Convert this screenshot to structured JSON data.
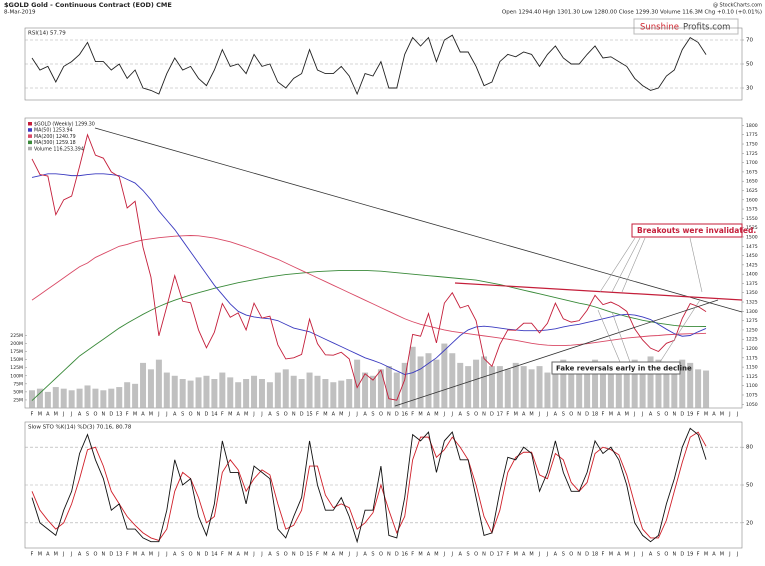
{
  "header": {
    "title": "$GOLD Gold - Continuous Contract (EOD) CME",
    "date": "8-Mar-2019",
    "quote": "Open 1294.40 High 1301.30 Low 1280.00 Close 1299.30 Volume 116.3M Chg +0.10 (+0.01%)",
    "source": "@ StockCharts.com",
    "logo": [
      "Sunshine",
      "Profits.com"
    ]
  },
  "chart_data": [
    {
      "type": "line",
      "title": "RSI(14) 57.79",
      "ylim": [
        20,
        80
      ],
      "yticks": [
        30,
        50,
        70
      ],
      "grid": true,
      "series": [
        {
          "name": "RSI(14)",
          "color": "#222222",
          "values": [
            55,
            45,
            48,
            35,
            48,
            52,
            58,
            68,
            52,
            52,
            45,
            50,
            38,
            45,
            30,
            28,
            25,
            42,
            55,
            45,
            48,
            38,
            32,
            45,
            62,
            48,
            50,
            42,
            58,
            48,
            50,
            35,
            30,
            38,
            42,
            62,
            45,
            42,
            42,
            48,
            40,
            25,
            42,
            40,
            52,
            30,
            30,
            58,
            72,
            65,
            72,
            52,
            70,
            74,
            60,
            60,
            48,
            32,
            35,
            52,
            58,
            56,
            60,
            58,
            48,
            58,
            65,
            55,
            50,
            50,
            58,
            65,
            55,
            56,
            52,
            48,
            38,
            32,
            28,
            30,
            40,
            45,
            62,
            72,
            68,
            57.79,
            null,
            null,
            null,
            null
          ]
        }
      ]
    },
    {
      "type": "line",
      "categories": [
        "F",
        "M",
        "A",
        "M",
        "J",
        "J",
        "A",
        "S",
        "O",
        "N",
        "D",
        "13",
        "F",
        "M",
        "A",
        "M",
        "J",
        "J",
        "A",
        "S",
        "O",
        "N",
        "D",
        "14",
        "F",
        "M",
        "A",
        "M",
        "J",
        "J",
        "A",
        "S",
        "O",
        "N",
        "D",
        "15",
        "F",
        "M",
        "A",
        "M",
        "J",
        "J",
        "A",
        "S",
        "O",
        "N",
        "D",
        "16",
        "F",
        "M",
        "A",
        "M",
        "J",
        "J",
        "A",
        "S",
        "O",
        "N",
        "D",
        "17",
        "F",
        "M",
        "A",
        "M",
        "J",
        "J",
        "A",
        "S",
        "O",
        "N",
        "D",
        "18",
        "F",
        "M",
        "A",
        "M",
        "J",
        "J",
        "A",
        "S",
        "O",
        "N",
        "D",
        "19",
        "F",
        "M",
        "A",
        "M",
        "J",
        "J"
      ],
      "ylim": [
        1040,
        1820
      ],
      "yticks": [
        1050,
        1075,
        1100,
        1125,
        1150,
        1175,
        1200,
        1225,
        1250,
        1275,
        1300,
        1325,
        1350,
        1375,
        1400,
        1425,
        1450,
        1475,
        1500,
        1525,
        1550,
        1575,
        1600,
        1625,
        1650,
        1675,
        1700,
        1725,
        1750,
        1775,
        1800
      ],
      "y2lim": [
        0,
        900
      ],
      "y2ticks": [
        {
          "value": 25,
          "label": "25M"
        },
        {
          "value": 50,
          "label": "50M"
        },
        {
          "value": 75,
          "label": "75M"
        },
        {
          "value": 100,
          "label": "100M"
        },
        {
          "value": 125,
          "label": "125M"
        },
        {
          "value": 150,
          "label": "150M"
        },
        {
          "value": 175,
          "label": "175M"
        },
        {
          "value": 200,
          "label": "200M"
        },
        {
          "value": 225,
          "label": "225M"
        }
      ],
      "grid": false,
      "annotations": [
        "Breakouts were invalidated.",
        "Fake reversals early in the decline"
      ],
      "series": [
        {
          "name": "$GOLD (Weekly) 1299.30",
          "color": "#c41e3a",
          "values": [
            1710,
            1668,
            1664,
            1560,
            1600,
            1610,
            1690,
            1775,
            1720,
            1712,
            1675,
            1662,
            1578,
            1596,
            1472,
            1392,
            1234,
            1313,
            1396,
            1327,
            1323,
            1250,
            1202,
            1244,
            1321,
            1284,
            1296,
            1250,
            1322,
            1282,
            1287,
            1210,
            1172,
            1175,
            1184,
            1279,
            1213,
            1183,
            1182,
            1190,
            1172,
            1095,
            1132,
            1115,
            1142,
            1065,
            1061,
            1116,
            1238,
            1233,
            1294,
            1215,
            1322,
            1350,
            1309,
            1316,
            1275,
            1173,
            1152,
            1211,
            1250,
            1249,
            1268,
            1268,
            1242,
            1268,
            1322,
            1280,
            1271,
            1275,
            1303,
            1343,
            1318,
            1325,
            1315,
            1300,
            1253,
            1223,
            1201,
            1192,
            1214,
            1222,
            1281,
            1321,
            1313,
            1299.3,
            null,
            null,
            null,
            null
          ]
        },
        {
          "name": "MA(50) 1253.94",
          "color": "#3b3bc0",
          "values": [
            1660,
            1665,
            1670,
            1670,
            1668,
            1665,
            1665,
            1668,
            1670,
            1670,
            1668,
            1665,
            1655,
            1645,
            1625,
            1600,
            1570,
            1545,
            1520,
            1490,
            1460,
            1430,
            1400,
            1370,
            1345,
            1320,
            1300,
            1290,
            1285,
            1282,
            1280,
            1275,
            1265,
            1255,
            1250,
            1245,
            1235,
            1225,
            1215,
            1205,
            1195,
            1185,
            1175,
            1168,
            1160,
            1150,
            1140,
            1130,
            1135,
            1145,
            1160,
            1175,
            1195,
            1215,
            1235,
            1250,
            1258,
            1260,
            1258,
            1255,
            1252,
            1250,
            1248,
            1248,
            1248,
            1250,
            1253,
            1258,
            1262,
            1265,
            1270,
            1275,
            1280,
            1285,
            1290,
            1292,
            1290,
            1285,
            1278,
            1265,
            1252,
            1240,
            1233,
            1235,
            1245,
            1253.94,
            null,
            null,
            null,
            null
          ]
        },
        {
          "name": "MA(200) 1240.79",
          "color": "#d94a66",
          "values": [
            1330,
            1345,
            1360,
            1375,
            1390,
            1405,
            1420,
            1430,
            1445,
            1455,
            1465,
            1475,
            1480,
            1487,
            1492,
            1495,
            1498,
            1500,
            1502,
            1503,
            1504,
            1503,
            1500,
            1497,
            1492,
            1487,
            1480,
            1473,
            1465,
            1457,
            1448,
            1440,
            1430,
            1420,
            1410,
            1400,
            1390,
            1380,
            1370,
            1360,
            1350,
            1340,
            1330,
            1320,
            1310,
            1300,
            1290,
            1280,
            1272,
            1265,
            1260,
            1255,
            1250,
            1246,
            1243,
            1240,
            1237,
            1234,
            1231,
            1228,
            1225,
            1222,
            1218,
            1214,
            1211,
            1209,
            1208,
            1208,
            1209,
            1211,
            1213,
            1216,
            1219,
            1222,
            1225,
            1228,
            1230,
            1232,
            1234,
            1235,
            1237,
            1238,
            1239,
            1240,
            1240,
            1240.79,
            null,
            null,
            null,
            null
          ]
        },
        {
          "name": "MA(300) 1259.18",
          "color": "#3a8a3a",
          "values": [
            1060,
            1080,
            1100,
            1120,
            1140,
            1160,
            1180,
            1195,
            1210,
            1225,
            1240,
            1255,
            1268,
            1280,
            1292,
            1303,
            1313,
            1322,
            1330,
            1337,
            1344,
            1350,
            1356,
            1362,
            1367,
            1372,
            1377,
            1381,
            1385,
            1389,
            1393,
            1396,
            1399,
            1401,
            1403,
            1405,
            1407,
            1408,
            1409,
            1410,
            1410,
            1410,
            1410,
            1409,
            1408,
            1406,
            1404,
            1402,
            1400,
            1398,
            1396,
            1394,
            1392,
            1390,
            1388,
            1386,
            1384,
            1380,
            1376,
            1372,
            1367,
            1362,
            1357,
            1352,
            1347,
            1342,
            1337,
            1332,
            1327,
            1322,
            1318,
            1312,
            1305,
            1298,
            1292,
            1286,
            1281,
            1276,
            1272,
            1268,
            1265,
            1262,
            1260,
            1259,
            1259,
            1259.18,
            null,
            null,
            null,
            null
          ]
        },
        {
          "name": "Volume 116,253,394",
          "color": "#b0b0b0",
          "axis": "y2",
          "values": [
            55,
            60,
            50,
            65,
            60,
            55,
            60,
            70,
            60,
            55,
            60,
            65,
            80,
            75,
            140,
            120,
            150,
            110,
            100,
            90,
            85,
            95,
            100,
            90,
            110,
            95,
            80,
            90,
            100,
            90,
            80,
            110,
            120,
            100,
            90,
            110,
            100,
            90,
            80,
            85,
            90,
            150,
            110,
            100,
            120,
            130,
            110,
            140,
            190,
            160,
            170,
            150,
            200,
            170,
            140,
            130,
            150,
            160,
            130,
            130,
            120,
            140,
            130,
            120,
            130,
            110,
            140,
            150,
            120,
            130,
            140,
            150,
            140,
            130,
            120,
            130,
            150,
            140,
            160,
            150,
            140,
            130,
            150,
            140,
            120,
            116.253394,
            null,
            null,
            null,
            null
          ]
        }
      ]
    },
    {
      "type": "line",
      "title": "Slow STO %K(14) %D(3) 70.16, 80.78",
      "categories": [
        "F",
        "M",
        "A",
        "M",
        "J",
        "J",
        "A",
        "S",
        "O",
        "N",
        "D",
        "13",
        "F",
        "M",
        "A",
        "M",
        "J",
        "J",
        "A",
        "S",
        "O",
        "N",
        "D",
        "14",
        "F",
        "M",
        "A",
        "M",
        "J",
        "J",
        "A",
        "S",
        "O",
        "N",
        "D",
        "15",
        "F",
        "M",
        "A",
        "M",
        "J",
        "J",
        "A",
        "S",
        "O",
        "N",
        "D",
        "16",
        "F",
        "M",
        "A",
        "M",
        "J",
        "J",
        "A",
        "S",
        "O",
        "N",
        "D",
        "17",
        "F",
        "M",
        "A",
        "M",
        "J",
        "J",
        "A",
        "S",
        "O",
        "N",
        "D",
        "18",
        "F",
        "M",
        "A",
        "M",
        "J",
        "J",
        "A",
        "S",
        "O",
        "N",
        "D",
        "19",
        "F",
        "M",
        "A",
        "M",
        "J",
        "J"
      ],
      "ylim": [
        0,
        100
      ],
      "yticks": [
        20,
        50,
        80
      ],
      "grid": true,
      "series": [
        {
          "name": "%K(14)",
          "color": "#111111",
          "values": [
            40,
            20,
            15,
            10,
            30,
            45,
            75,
            90,
            70,
            55,
            30,
            35,
            15,
            15,
            8,
            5,
            5,
            30,
            70,
            50,
            55,
            25,
            10,
            35,
            85,
            60,
            60,
            35,
            65,
            60,
            55,
            15,
            8,
            25,
            40,
            85,
            50,
            30,
            30,
            40,
            25,
            5,
            30,
            30,
            65,
            10,
            8,
            40,
            90,
            85,
            92,
            60,
            85,
            92,
            70,
            70,
            40,
            10,
            12,
            45,
            72,
            70,
            80,
            75,
            45,
            60,
            85,
            60,
            45,
            45,
            60,
            85,
            75,
            80,
            70,
            50,
            20,
            10,
            5,
            10,
            35,
            55,
            80,
            95,
            90,
            70.16,
            null,
            null,
            null,
            null
          ]
        },
        {
          "name": "%D(3)",
          "color": "#d0202a",
          "values": [
            45,
            30,
            22,
            15,
            20,
            35,
            55,
            78,
            80,
            65,
            45,
            35,
            25,
            18,
            12,
            8,
            6,
            15,
            45,
            60,
            55,
            40,
            20,
            25,
            60,
            70,
            62,
            45,
            55,
            62,
            58,
            35,
            15,
            18,
            30,
            65,
            65,
            42,
            32,
            35,
            32,
            15,
            20,
            28,
            50,
            30,
            12,
            25,
            70,
            88,
            88,
            72,
            78,
            88,
            80,
            70,
            50,
            25,
            12,
            30,
            60,
            72,
            76,
            76,
            58,
            55,
            75,
            70,
            52,
            45,
            52,
            75,
            80,
            78,
            74,
            58,
            35,
            15,
            8,
            8,
            22,
            45,
            68,
            88,
            92,
            80.78,
            null,
            null,
            null,
            null
          ]
        }
      ]
    }
  ]
}
